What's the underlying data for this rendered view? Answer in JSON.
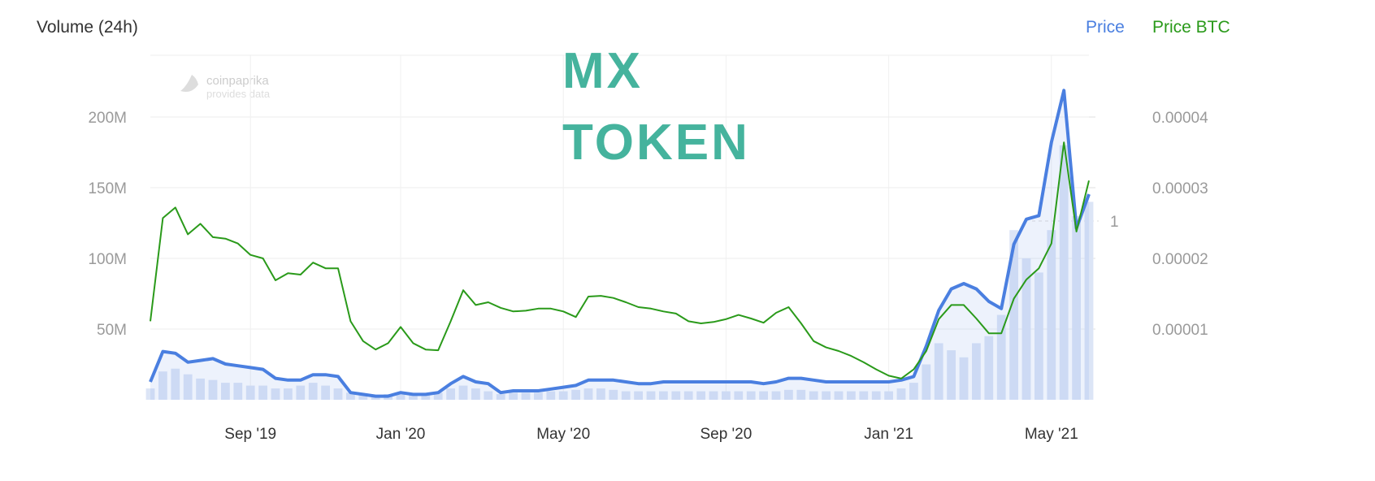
{
  "chart_data": {
    "type": "line",
    "title": [
      "MX",
      "TOKEN"
    ],
    "watermark": [
      "coinpaprika",
      "provides data"
    ],
    "categories": [
      null,
      null,
      null,
      null,
      null,
      null,
      null,
      null,
      "Sep '19",
      null,
      null,
      null,
      null,
      null,
      null,
      null,
      null,
      null,
      null,
      null,
      "Jan '20",
      null,
      null,
      null,
      null,
      null,
      null,
      null,
      null,
      null,
      null,
      null,
      null,
      "May '20",
      null,
      null,
      null,
      null,
      null,
      null,
      null,
      null,
      null,
      null,
      null,
      null,
      "Sep '20",
      null,
      null,
      null,
      null,
      null,
      null,
      null,
      null,
      null,
      null,
      null,
      null,
      "Jan '21",
      null,
      null,
      null,
      null,
      null,
      null,
      null,
      null,
      null,
      null,
      null,
      null,
      "May '21",
      null,
      null,
      null
    ],
    "ylim": [
      0,
      243.7
    ],
    "yticks": [
      {
        "value": 50,
        "label": "50M"
      },
      {
        "value": 100,
        "label": "100M"
      },
      {
        "value": 150,
        "label": "150M"
      },
      {
        "value": 200,
        "label": "200M"
      }
    ],
    "y2lim": [
      0,
      4.874e-05
    ],
    "y2ticks": [
      1e-05,
      2e-05,
      3e-05,
      4e-05
    ],
    "y3lim": [
      0,
      1.927
    ],
    "y3ticks": [
      1
    ],
    "grid": true,
    "legend": "top-right",
    "series": [
      {
        "name": "Volume (24h)",
        "color": "#dce5f6",
        "axis": "y",
        "values": [
          8,
          20,
          22,
          18,
          15,
          14,
          12,
          12,
          10,
          10,
          8,
          8,
          10,
          12,
          10,
          8,
          5,
          4,
          3,
          4,
          5,
          4,
          4,
          5,
          8,
          10,
          8,
          6,
          4,
          5,
          5,
          5,
          6,
          6,
          7,
          8,
          8,
          7,
          6,
          6,
          6,
          6,
          6,
          6,
          6,
          6,
          6,
          6,
          6,
          6,
          6,
          7,
          7,
          6,
          6,
          6,
          6,
          6,
          6,
          6,
          8,
          12,
          25,
          40,
          35,
          30,
          40,
          45,
          60,
          120,
          100,
          90,
          120,
          180,
          130,
          140
        ]
      },
      {
        "name": "Price",
        "color": "#4a7fe0",
        "axis": "y3",
        "values": [
          0.1,
          0.27,
          0.26,
          0.21,
          0.22,
          0.23,
          0.2,
          0.19,
          0.18,
          0.17,
          0.12,
          0.11,
          0.11,
          0.14,
          0.14,
          0.13,
          0.04,
          0.03,
          0.02,
          0.02,
          0.04,
          0.03,
          0.03,
          0.04,
          0.09,
          0.13,
          0.1,
          0.09,
          0.04,
          0.05,
          0.05,
          0.05,
          0.06,
          0.07,
          0.08,
          0.11,
          0.11,
          0.11,
          0.1,
          0.09,
          0.09,
          0.1,
          0.1,
          0.1,
          0.1,
          0.1,
          0.1,
          0.1,
          0.1,
          0.09,
          0.1,
          0.12,
          0.12,
          0.11,
          0.1,
          0.1,
          0.1,
          0.1,
          0.1,
          0.1,
          0.11,
          0.13,
          0.3,
          0.5,
          0.62,
          0.65,
          0.62,
          0.55,
          0.51,
          0.87,
          1.01,
          1.03,
          1.44,
          1.73,
          0.96,
          1.15
        ]
      },
      {
        "name": "Price BTC",
        "color": "#2a9a1a",
        "axis": "y2",
        "values": [
          1.11e-05,
          2.57e-05,
          2.72e-05,
          2.34e-05,
          2.49e-05,
          2.3e-05,
          2.28e-05,
          2.21e-05,
          2.05e-05,
          2e-05,
          1.69e-05,
          1.79e-05,
          1.77e-05,
          1.94e-05,
          1.86e-05,
          1.86e-05,
          1.11e-05,
          8.3e-06,
          7.1e-06,
          8e-06,
          1.03e-05,
          8e-06,
          7.1e-06,
          7e-06,
          1.11e-05,
          1.55e-05,
          1.34e-05,
          1.38e-05,
          1.3e-05,
          1.25e-05,
          1.26e-05,
          1.29e-05,
          1.29e-05,
          1.25e-05,
          1.17e-05,
          1.46e-05,
          1.47e-05,
          1.44e-05,
          1.38e-05,
          1.31e-05,
          1.29e-05,
          1.25e-05,
          1.22e-05,
          1.11e-05,
          1.08e-05,
          1.1e-05,
          1.14e-05,
          1.2e-05,
          1.15e-05,
          1.09e-05,
          1.23e-05,
          1.31e-05,
          1.08e-05,
          8.3e-06,
          7.4e-06,
          6.9e-06,
          6.2e-06,
          5.3e-06,
          4.3e-06,
          3.4e-06,
          3e-06,
          4.3e-06,
          6.9e-06,
          1.14e-05,
          1.34e-05,
          1.34e-05,
          1.15e-05,
          9.4e-06,
          9.4e-06,
          1.43e-05,
          1.7e-05,
          1.86e-05,
          2.21e-05,
          3.64e-05,
          2.38e-05,
          3.1e-05
        ]
      }
    ]
  }
}
